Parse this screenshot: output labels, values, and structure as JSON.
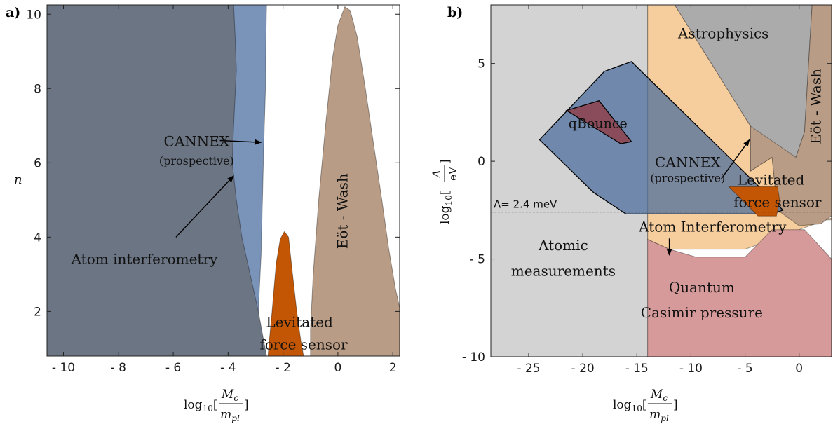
{
  "chart_data": [
    {
      "panel": "a)",
      "type": "area",
      "xlabel": "log10[Mc/mpl]",
      "ylabel": "n",
      "xlim": [
        -10.6,
        2.25
      ],
      "ylim": [
        0.8,
        10.25
      ],
      "xticks": [
        -10,
        -8,
        -6,
        -4,
        -2,
        0,
        2
      ],
      "xtick_labels": [
        "- 10",
        "- 8",
        "- 6",
        "- 4",
        "- 2",
        "0",
        "2"
      ],
      "yticks": [
        2,
        4,
        6,
        8,
        10
      ],
      "ytick_labels": [
        "2",
        "4",
        "6",
        "8",
        "10"
      ],
      "grid": false,
      "regions": [
        {
          "name": "CANNEX (prospective)",
          "color": "#7a93b8",
          "points": [
            [
              -10.6,
              0.8
            ],
            [
              -10.6,
              10.25
            ],
            [
              -2.6,
              10.25
            ],
            [
              -2.62,
              9.5
            ],
            [
              -2.64,
              8
            ],
            [
              -2.7,
              6.5
            ],
            [
              -2.75,
              5
            ],
            [
              -2.8,
              3.5
            ],
            [
              -2.9,
              2
            ],
            [
              -3.0,
              0.8
            ]
          ]
        },
        {
          "name": "Atom interferometry",
          "color": "#6c7584",
          "points": [
            [
              -10.6,
              0.8
            ],
            [
              -10.6,
              10.25
            ],
            [
              -3.8,
              10.25
            ],
            [
              -3.75,
              9.5
            ],
            [
              -3.7,
              8.5
            ],
            [
              -3.8,
              7
            ],
            [
              -3.85,
              6
            ],
            [
              -3.7,
              5
            ],
            [
              -3.5,
              4
            ],
            [
              -3.2,
              3
            ],
            [
              -2.9,
              2
            ],
            [
              -2.7,
              1.2
            ],
            [
              -2.6,
              0.8
            ]
          ]
        },
        {
          "name": "Eöt - Wash",
          "color": "#b99c85",
          "points": [
            [
              -1.0,
              0.8
            ],
            [
              -1.0,
              1.5
            ],
            [
              -0.9,
              3
            ],
            [
              -0.7,
              5
            ],
            [
              -0.45,
              7
            ],
            [
              -0.2,
              8.8
            ],
            [
              0.0,
              9.7
            ],
            [
              0.25,
              10.2
            ],
            [
              0.45,
              10.1
            ],
            [
              0.7,
              9.4
            ],
            [
              1.0,
              8
            ],
            [
              1.3,
              6.5
            ],
            [
              1.6,
              5
            ],
            [
              1.85,
              3.7
            ],
            [
              2.1,
              2.6
            ],
            [
              2.25,
              2.1
            ],
            [
              2.25,
              0.8
            ]
          ]
        },
        {
          "name": "Levitated force sensor",
          "color": "#c25605",
          "points": [
            [
              -2.55,
              0.8
            ],
            [
              -2.4,
              2
            ],
            [
              -2.25,
              3.3
            ],
            [
              -2.1,
              3.95
            ],
            [
              -1.95,
              4.15
            ],
            [
              -1.8,
              4.0
            ],
            [
              -1.65,
              3.0
            ],
            [
              -1.5,
              2.0
            ],
            [
              -1.35,
              1.2
            ],
            [
              -1.25,
              0.8
            ]
          ]
        }
      ],
      "annotations": [
        {
          "text": "CANNEX",
          "x": -5.15,
          "y": 6.45,
          "size": 20
        },
        {
          "text": "(prospective)",
          "x": -5.15,
          "y": 5.95,
          "size": 16
        },
        {
          "text": "Atom interferometry",
          "x": -7.05,
          "y": 3.28,
          "size": 20
        },
        {
          "text": "Levitated",
          "x": -1.4,
          "y": 1.58,
          "size": 20
        },
        {
          "text": "force sensor",
          "x": -1.25,
          "y": 0.98,
          "size": 20
        },
        {
          "text": "Eöt - Wash",
          "x": 0.35,
          "y": 4.7,
          "size": 20,
          "rotate": -90
        }
      ],
      "arrows": [
        {
          "from": [
            -4.3,
            6.6
          ],
          "to": [
            -2.8,
            6.55
          ]
        },
        {
          "from": [
            -5.9,
            4.0
          ],
          "to": [
            -3.8,
            5.65
          ]
        }
      ]
    },
    {
      "panel": "b)",
      "type": "area",
      "xlabel": "log10[Mc/mpl]",
      "ylabel": "log10[Λ/eV]",
      "xlim": [
        -28.5,
        3.0
      ],
      "ylim": [
        -10,
        8
      ],
      "xticks": [
        -25,
        -20,
        -15,
        -10,
        -5,
        0
      ],
      "xtick_labels": [
        "- 25",
        "- 20",
        "- 15",
        "- 10",
        "- 5",
        "0"
      ],
      "yticks": [
        -10,
        -5,
        0,
        5
      ],
      "ytick_labels": [
        "- 10",
        "- 5",
        "0",
        "5"
      ],
      "grid": false,
      "hline": {
        "y": -2.6,
        "label": "Λ= 2.4 meV"
      },
      "regions": [
        {
          "name": "Atomic measurements",
          "color": "#d3d3d3",
          "points": [
            [
              -28.5,
              -10
            ],
            [
              -28.5,
              8
            ],
            [
              -14,
              8
            ],
            [
              -14,
              -10
            ]
          ]
        },
        {
          "name": "Atom Interferometry",
          "color": "#f6cd9d",
          "points": [
            [
              -14,
              8
            ],
            [
              -11.5,
              8
            ],
            [
              -4.5,
              1.8
            ],
            [
              -2.5,
              0.2
            ],
            [
              -2.0,
              -2.5
            ],
            [
              0,
              -3.0
            ],
            [
              3.0,
              -3.0
            ],
            [
              3.0,
              -2.9
            ],
            [
              -5.0,
              -4.5
            ],
            [
              -12,
              -4.5
            ],
            [
              -14,
              -4.0
            ]
          ]
        },
        {
          "name": "Astrophysics",
          "color": "#ababab",
          "points": [
            [
              -11.5,
              8
            ],
            [
              -4.5,
              1.8
            ],
            [
              -4.5,
              -0.5
            ],
            [
              -2.5,
              0.2
            ],
            [
              -0.3,
              0.2
            ],
            [
              0.5,
              1.5
            ],
            [
              1.2,
              8
            ]
          ]
        },
        {
          "name": "Eöt - Wash",
          "color": "#b99c85",
          "points": [
            [
              1.2,
              8
            ],
            [
              3.0,
              8
            ],
            [
              3.0,
              -2.8
            ],
            [
              2.0,
              -3.2
            ],
            [
              0,
              -3.3
            ],
            [
              -2.0,
              -2.5
            ],
            [
              -2.5,
              0.2
            ],
            [
              -4.5,
              -0.5
            ],
            [
              -4.5,
              1.8
            ],
            [
              -0.3,
              0.2
            ],
            [
              0.5,
              1.5
            ]
          ]
        },
        {
          "name": "Quantum Casimir pressure",
          "color": "#d69a9a",
          "points": [
            [
              -14,
              -10
            ],
            [
              -14,
              -4.0
            ],
            [
              -12,
              -4.5
            ],
            [
              -9.5,
              -4.9
            ],
            [
              -5.0,
              -4.9
            ],
            [
              -2.5,
              -3.5
            ],
            [
              0.5,
              -3.5
            ],
            [
              3.0,
              -5.0
            ],
            [
              3.0,
              -10
            ]
          ]
        },
        {
          "name": "CANNEX (prospective)",
          "color": "#4f6f9e",
          "opacity": 0.75,
          "stroke": "#000",
          "points": [
            [
              -24,
              1.1
            ],
            [
              -18,
              4.6
            ],
            [
              -15.5,
              5.1
            ],
            [
              -1.5,
              -2.5
            ],
            [
              -2.5,
              -2.7
            ],
            [
              -16,
              -2.7
            ],
            [
              -19,
              -1.6
            ]
          ]
        },
        {
          "name": "Levitated force sensor",
          "color": "#c25605",
          "points": [
            [
              -6.5,
              -1.3
            ],
            [
              -2.0,
              -1.3
            ],
            [
              -1.8,
              -2.0
            ],
            [
              -2.1,
              -2.8
            ],
            [
              -3.8,
              -2.8
            ]
          ]
        },
        {
          "name": "qBounce",
          "color": "#8a4b5a",
          "stroke": "#000",
          "points": [
            [
              -21.5,
              2.6
            ],
            [
              -18.5,
              3.1
            ],
            [
              -15.5,
              1.0
            ],
            [
              -16.5,
              0.9
            ]
          ]
        }
      ],
      "annotations": [
        {
          "text": "Astrophysics",
          "x": -7.0,
          "y": 6.3,
          "size": 20
        },
        {
          "text": "Eöt - Wash",
          "x": 2.0,
          "y": 2.8,
          "size": 20,
          "rotate": -90
        },
        {
          "text": "qBounce",
          "x": -18.6,
          "y": 1.7,
          "size": 19
        },
        {
          "text": "CANNEX",
          "x": -10.3,
          "y": -0.3,
          "size": 20
        },
        {
          "text": "(prospective)",
          "x": -10.3,
          "y": -1.05,
          "size": 16
        },
        {
          "text": "Levitated",
          "x": -2.6,
          "y": -1.2,
          "size": 20
        },
        {
          "text": "force sensor",
          "x": -2.0,
          "y": -2.35,
          "size": 20
        },
        {
          "text": "Atom Interferometry",
          "x": -8.0,
          "y": -3.6,
          "size": 20
        },
        {
          "text": "Atomic",
          "x": -21.8,
          "y": -4.55,
          "size": 20
        },
        {
          "text": "measurements",
          "x": -21.8,
          "y": -5.85,
          "size": 20
        },
        {
          "text": "Quantum",
          "x": -9.0,
          "y": -6.7,
          "size": 20
        },
        {
          "text": "Casimir pressure",
          "x": -9.0,
          "y": -8.0,
          "size": 20
        }
      ],
      "arrows": [
        {
          "from": [
            -7.2,
            -0.9
          ],
          "to": [
            -4.6,
            1.1
          ]
        },
        {
          "from": [
            -12,
            -3.95
          ],
          "to": [
            -12,
            -4.8
          ]
        }
      ]
    }
  ]
}
